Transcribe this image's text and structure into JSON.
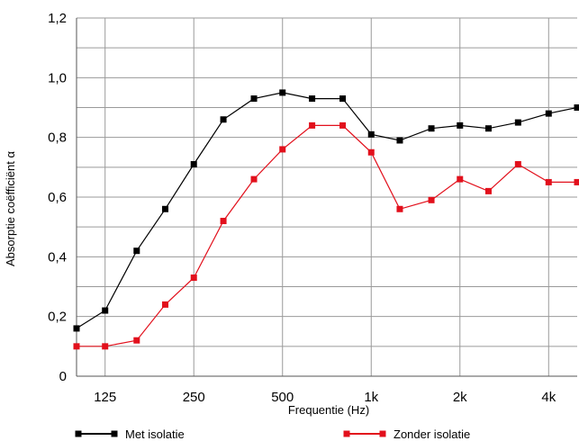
{
  "chart_data": {
    "type": "line",
    "title": "",
    "xlabel": "Frequentie (Hz)",
    "ylabel": "Absorptie coëfficiënt α",
    "x_scale": "log",
    "x": [
      100,
      125,
      160,
      200,
      250,
      315,
      400,
      500,
      630,
      800,
      1000,
      1250,
      1600,
      2000,
      2500,
      3150,
      4000,
      5000
    ],
    "x_ticks": [
      {
        "value": 125,
        "label": "125"
      },
      {
        "value": 250,
        "label": "250"
      },
      {
        "value": 500,
        "label": "500"
      },
      {
        "value": 1000,
        "label": "1k"
      },
      {
        "value": 2000,
        "label": "2k"
      },
      {
        "value": 4000,
        "label": "4k"
      }
    ],
    "y_ticks": [
      {
        "value": 0,
        "label": "0"
      },
      {
        "value": 0.2,
        "label": "0,2"
      },
      {
        "value": 0.4,
        "label": "0,4"
      },
      {
        "value": 0.6,
        "label": "0,6"
      },
      {
        "value": 0.8,
        "label": "0,8"
      },
      {
        "value": 1.0,
        "label": "1,0"
      },
      {
        "value": 1.2,
        "label": "1,2"
      }
    ],
    "ylim": [
      0,
      1.2
    ],
    "grid": true,
    "legend_position": "bottom",
    "series": [
      {
        "name": "Met isolatie",
        "color": "#000000",
        "values": [
          0.16,
          0.22,
          0.42,
          0.56,
          0.71,
          0.86,
          0.93,
          0.95,
          0.93,
          0.93,
          0.81,
          0.79,
          0.83,
          0.84,
          0.83,
          0.85,
          0.88,
          0.9
        ]
      },
      {
        "name": "Zonder isolatie",
        "color": "#e2101c",
        "values": [
          0.1,
          0.1,
          0.12,
          0.24,
          0.33,
          0.52,
          0.66,
          0.76,
          0.84,
          0.84,
          0.75,
          0.56,
          0.59,
          0.66,
          0.62,
          0.71,
          0.65,
          0.65
        ]
      }
    ]
  }
}
